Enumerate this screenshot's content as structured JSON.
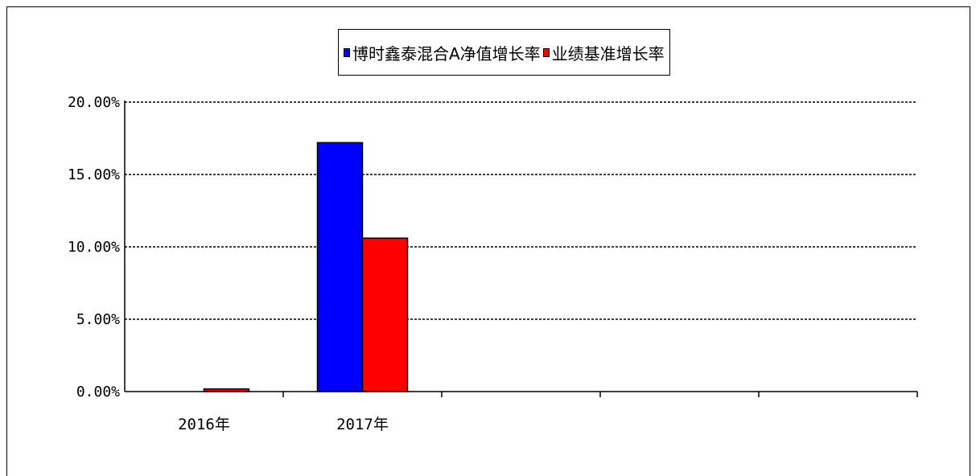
{
  "chart_data": {
    "type": "bar",
    "title": "",
    "xlabel": "",
    "ylabel": "",
    "categories": [
      "2016年",
      "2017年"
    ],
    "series": [
      {
        "name": "博时鑫泰混合A净值增长率",
        "values": [
          0.0,
          17.2
        ],
        "color": "#0000ff"
      },
      {
        "name": "业绩基准增长率",
        "values": [
          0.18,
          10.6
        ],
        "color": "#ff0000"
      }
    ],
    "ylim": [
      0,
      20
    ],
    "yticks": [
      0,
      5,
      10,
      15,
      20
    ],
    "ytick_labels": [
      "0.00%",
      "5.00%",
      "10.00%",
      "15.00%",
      "20.00%"
    ],
    "grid": true,
    "legend": "top-center"
  }
}
